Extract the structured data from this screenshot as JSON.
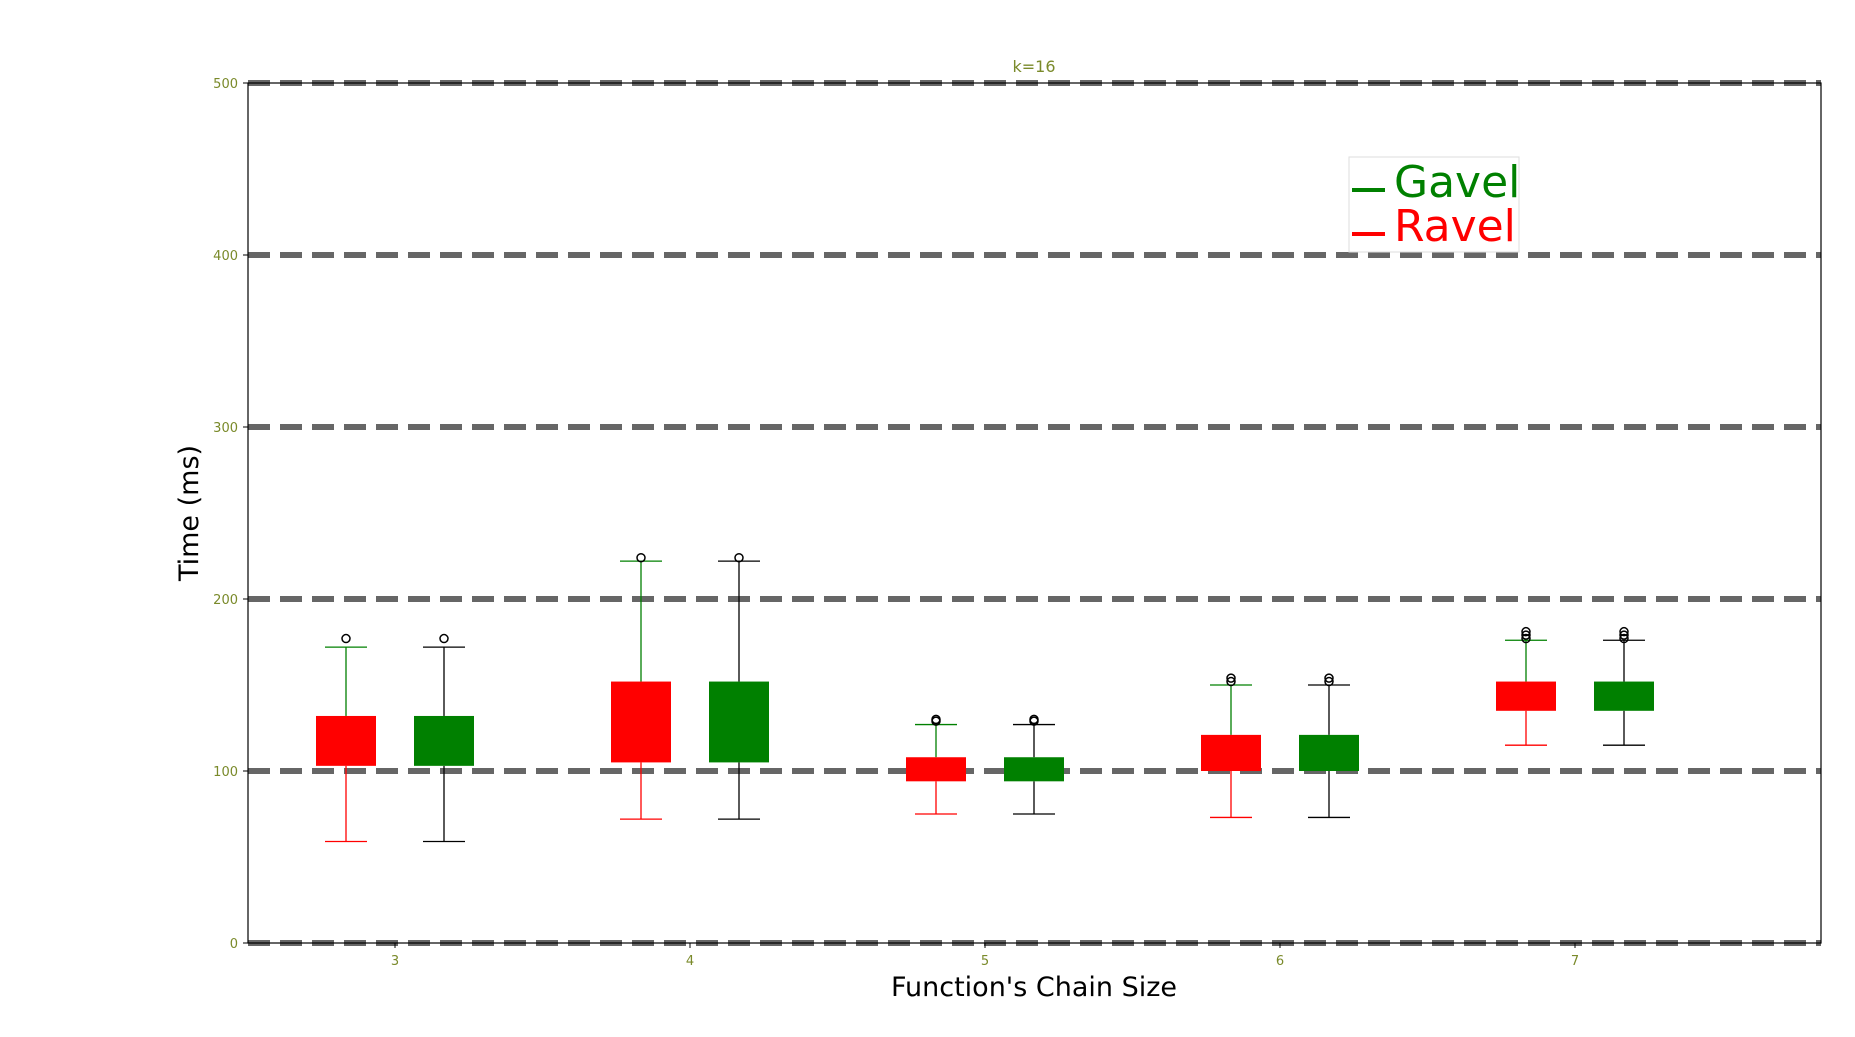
{
  "chart_data": {
    "type": "box",
    "title": "k=16",
    "xlabel": "Function's Chain Size",
    "ylabel": "Time (ms)",
    "ylim": [
      0,
      500
    ],
    "yticks": [
      0,
      100,
      200,
      300,
      400,
      500
    ],
    "categories": [
      "3",
      "4",
      "5",
      "6",
      "7"
    ],
    "grid": "horizontal dashed",
    "legend_position": "upper-right",
    "series": [
      {
        "name": "Ravel",
        "box_color": "#ff0000",
        "whisker_color": "#ff0000",
        "cap_top_color": "#008000",
        "whisker_top_color": "#008000",
        "boxes": [
          {
            "q1": 103,
            "q3": 132,
            "whisker_low": 59,
            "whisker_high": 172,
            "outliers": [
              177
            ]
          },
          {
            "q1": 105,
            "q3": 152,
            "whisker_low": 72,
            "whisker_high": 222,
            "outliers": [
              224
            ]
          },
          {
            "q1": 94,
            "q3": 108,
            "whisker_low": 75,
            "whisker_high": 127,
            "outliers": [
              129,
              130
            ]
          },
          {
            "q1": 100,
            "q3": 121,
            "whisker_low": 73,
            "whisker_high": 150,
            "outliers": [
              152,
              154
            ]
          },
          {
            "q1": 135,
            "q3": 152,
            "whisker_low": 115,
            "whisker_high": 176,
            "outliers": [
              177,
              179,
              181
            ]
          }
        ]
      },
      {
        "name": "Gavel",
        "box_color": "#008000",
        "whisker_color": "#000000",
        "cap_top_color": "#000000",
        "whisker_top_color": "#000000",
        "boxes": [
          {
            "q1": 103,
            "q3": 132,
            "whisker_low": 59,
            "whisker_high": 172,
            "outliers": [
              177
            ]
          },
          {
            "q1": 105,
            "q3": 152,
            "whisker_low": 72,
            "whisker_high": 222,
            "outliers": [
              224
            ]
          },
          {
            "q1": 94,
            "q3": 108,
            "whisker_low": 75,
            "whisker_high": 127,
            "outliers": [
              129,
              130
            ]
          },
          {
            "q1": 100,
            "q3": 121,
            "whisker_low": 73,
            "whisker_high": 150,
            "outliers": [
              152,
              154
            ]
          },
          {
            "q1": 135,
            "q3": 152,
            "whisker_low": 115,
            "whisker_high": 176,
            "outliers": [
              177,
              179,
              181
            ]
          }
        ]
      }
    ],
    "legend": [
      {
        "label": "Gavel",
        "color": "#008000"
      },
      {
        "label": "Ravel",
        "color": "#ff0000"
      }
    ]
  }
}
